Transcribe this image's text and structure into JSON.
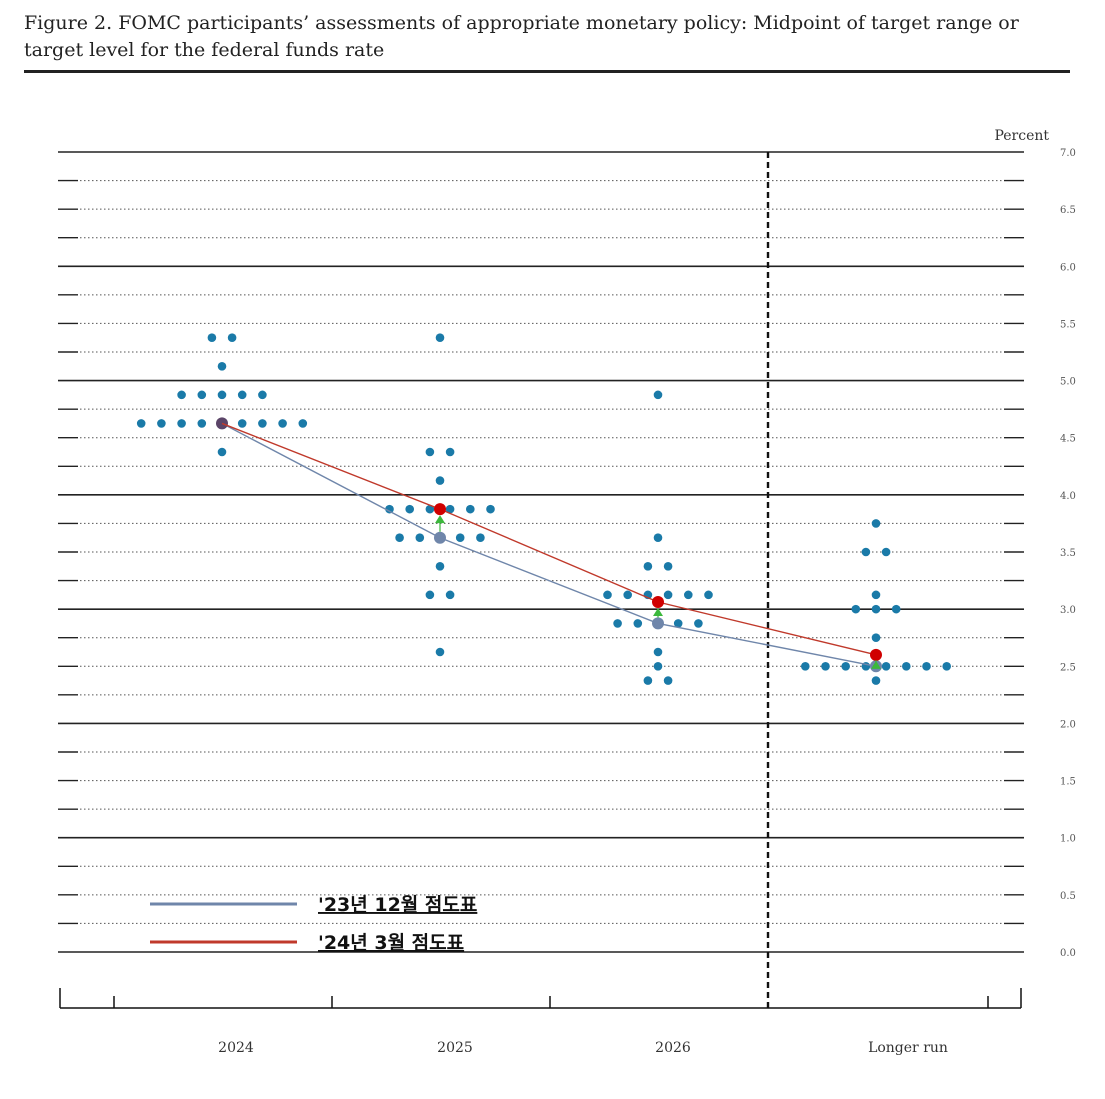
{
  "figure": {
    "title": "Figure 2.  FOMC participants’ assessments of appropriate monetary policy: Midpoint of target range or target level for the federal funds rate"
  },
  "chart_data": {
    "type": "scatter",
    "y_unit_label": "Percent",
    "ylim": [
      0.0,
      7.0
    ],
    "y_ticks": [
      "0.0",
      "0.5",
      "1.0",
      "1.5",
      "2.0",
      "2.5",
      "3.0",
      "3.5",
      "4.0",
      "4.5",
      "5.0",
      "5.5",
      "6.0",
      "6.5",
      "7.0"
    ],
    "categories": [
      "2024",
      "2025",
      "2026",
      "Longer run"
    ],
    "grid": true,
    "dots": [
      {
        "category": "2024",
        "counts": [
          {
            "y": 5.375,
            "n": 2
          },
          {
            "y": 5.125,
            "n": 1
          },
          {
            "y": 4.875,
            "n": 5
          },
          {
            "y": 4.625,
            "n": 9
          },
          {
            "y": 4.375,
            "n": 1
          }
        ]
      },
      {
        "category": "2025",
        "counts": [
          {
            "y": 5.375,
            "n": 1
          },
          {
            "y": 4.375,
            "n": 2
          },
          {
            "y": 4.125,
            "n": 1
          },
          {
            "y": 3.875,
            "n": 6
          },
          {
            "y": 3.625,
            "n": 5
          },
          {
            "y": 3.375,
            "n": 1
          },
          {
            "y": 3.125,
            "n": 2
          },
          {
            "y": 2.625,
            "n": 1
          }
        ]
      },
      {
        "category": "2026",
        "counts": [
          {
            "y": 4.875,
            "n": 1
          },
          {
            "y": 3.625,
            "n": 1
          },
          {
            "y": 3.375,
            "n": 2
          },
          {
            "y": 3.125,
            "n": 6
          },
          {
            "y": 2.875,
            "n": 5
          },
          {
            "y": 2.625,
            "n": 1
          },
          {
            "y": 2.5,
            "n": 1
          },
          {
            "y": 2.375,
            "n": 2
          }
        ]
      },
      {
        "category": "Longer run",
        "counts": [
          {
            "y": 3.75,
            "n": 1
          },
          {
            "y": 3.5,
            "n": 2
          },
          {
            "y": 3.125,
            "n": 1
          },
          {
            "y": 3.0,
            "n": 3
          },
          {
            "y": 2.75,
            "n": 1
          },
          {
            "y": 2.5,
            "n": 8
          },
          {
            "y": 2.375,
            "n": 1
          }
        ]
      }
    ],
    "series": [
      {
        "name": "'23년 12월 점도표",
        "color": "#6f86aa",
        "values": [
          4.625,
          3.625,
          2.875,
          2.5
        ]
      },
      {
        "name": "'24년 3월 점도표",
        "color": "#c0392b",
        "values": [
          4.625,
          3.875,
          3.0625,
          2.6
        ],
        "marker_color": "#d00000"
      }
    ],
    "arrows_color": "#3cb83c",
    "dot_color": "#1a7aa8",
    "legend": "bottom-left"
  }
}
